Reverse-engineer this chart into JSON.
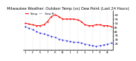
{
  "title": "Milwaukee Weather: Outdoor Temp (vs) Dew Point (Last 24 Hours)",
  "temp_values": [
    50,
    49,
    48,
    47,
    47,
    48,
    52,
    58,
    60,
    58,
    55,
    55,
    55,
    55,
    54,
    52,
    48,
    47,
    47,
    48,
    48,
    47,
    47,
    46
  ],
  "dew_values": [
    46,
    44,
    42,
    40,
    38,
    37,
    36,
    34,
    33,
    31,
    30,
    29,
    28,
    27,
    27,
    26,
    25,
    24,
    23,
    22,
    23,
    24,
    25,
    26
  ],
  "x_labels": [
    "1",
    "",
    "3",
    "",
    "5",
    "",
    "7",
    "",
    "9",
    "",
    "11",
    "",
    "1",
    "",
    "3",
    "",
    "5",
    "",
    "7",
    "",
    "9",
    "",
    "11",
    ""
  ],
  "ylim": [
    18,
    65
  ],
  "ytick_vals": [
    25,
    30,
    35,
    40,
    45,
    50,
    55,
    60
  ],
  "ytick_labels": [
    "25",
    "30",
    "35",
    "40",
    "45",
    "50",
    "55",
    "60"
  ],
  "temp_color": "#ff0000",
  "dew_color": "#0000dd",
  "grid_color": "#aaaaaa",
  "bg_color": "#ffffff",
  "title_fontsize": 3.8,
  "tick_fontsize": 3.0,
  "legend_fontsize": 2.8,
  "legend_labels": [
    "Temp",
    "Dew Pt"
  ],
  "legend_colors": [
    "#ff0000",
    "#0000dd"
  ],
  "n_points": 24
}
